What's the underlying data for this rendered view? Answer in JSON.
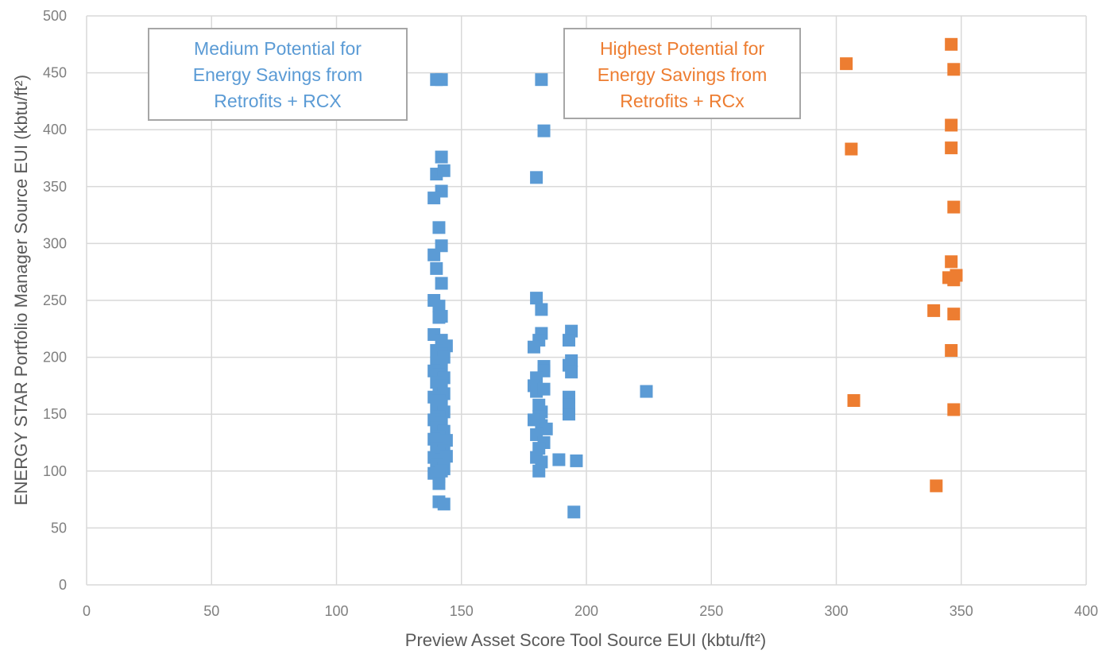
{
  "chart_data": {
    "type": "scatter",
    "xlabel": "Preview Asset Score Tool Source EUI (kbtu/ft²)",
    "ylabel": "ENERGY STAR Portfolio Manager Source EUI (kbtu/ft²)",
    "xlim": [
      0,
      400
    ],
    "ylim": [
      0,
      500
    ],
    "x_ticks": [
      "0",
      "50",
      "100",
      "150",
      "200",
      "250",
      "300",
      "350",
      "400"
    ],
    "y_ticks": [
      "0",
      "50",
      "100",
      "150",
      "200",
      "250",
      "300",
      "350",
      "400",
      "450",
      "500"
    ],
    "grid": true,
    "legend": "none",
    "annotations": [
      {
        "lines": [
          "Medium Potential for",
          "Energy Savings from",
          "Retrofits + RCX"
        ],
        "color": "#5b9bd5"
      },
      {
        "lines": [
          "Highest Potential for",
          "Energy Savings from",
          "Retrofits + RCx"
        ],
        "color": "#ed7d31"
      }
    ],
    "series": [
      {
        "color": "#5b9bd5",
        "marker": "square",
        "points": [
          [
            140,
            444
          ],
          [
            142,
            444
          ],
          [
            142,
            376
          ],
          [
            140,
            361
          ],
          [
            143,
            364
          ],
          [
            142,
            346
          ],
          [
            139,
            340
          ],
          [
            141,
            314
          ],
          [
            142,
            298
          ],
          [
            139,
            290
          ],
          [
            140,
            278
          ],
          [
            142,
            265
          ],
          [
            139,
            250
          ],
          [
            141,
            245
          ],
          [
            141,
            235
          ],
          [
            142,
            236
          ],
          [
            139,
            220
          ],
          [
            142,
            215
          ],
          [
            144,
            210
          ],
          [
            140,
            206
          ],
          [
            142,
            203
          ],
          [
            143,
            200
          ],
          [
            140,
            195
          ],
          [
            142,
            190
          ],
          [
            139,
            188
          ],
          [
            141,
            185
          ],
          [
            143,
            182
          ],
          [
            140,
            178
          ],
          [
            142,
            175
          ],
          [
            141,
            170
          ],
          [
            143,
            168
          ],
          [
            139,
            165
          ],
          [
            141,
            162
          ],
          [
            142,
            160
          ],
          [
            140,
            155
          ],
          [
            143,
            152
          ],
          [
            141,
            148
          ],
          [
            139,
            145
          ],
          [
            142,
            142
          ],
          [
            140,
            138
          ],
          [
            143,
            135
          ],
          [
            141,
            130
          ],
          [
            139,
            128
          ],
          [
            142,
            125
          ],
          [
            144,
            127
          ],
          [
            140,
            120
          ],
          [
            143,
            118
          ],
          [
            141,
            115
          ],
          [
            139,
            112
          ],
          [
            142,
            110
          ],
          [
            144,
            113
          ],
          [
            140,
            105
          ],
          [
            143,
            102
          ],
          [
            139,
            98
          ],
          [
            142,
            100
          ],
          [
            141,
            95
          ],
          [
            141,
            89
          ],
          [
            141,
            73
          ],
          [
            143,
            71
          ],
          [
            182,
            444
          ],
          [
            183,
            399
          ],
          [
            180,
            358
          ],
          [
            180,
            252
          ],
          [
            182,
            242
          ],
          [
            182,
            221
          ],
          [
            181,
            215
          ],
          [
            179,
            209
          ],
          [
            183,
            192
          ],
          [
            183,
            188
          ],
          [
            180,
            182
          ],
          [
            179,
            175
          ],
          [
            180,
            170
          ],
          [
            183,
            172
          ],
          [
            181,
            158
          ],
          [
            182,
            152
          ],
          [
            181,
            148
          ],
          [
            179,
            145
          ],
          [
            182,
            140
          ],
          [
            184,
            137
          ],
          [
            180,
            132
          ],
          [
            183,
            125
          ],
          [
            181,
            120
          ],
          [
            180,
            112
          ],
          [
            182,
            108
          ],
          [
            181,
            100
          ],
          [
            194,
            223
          ],
          [
            193,
            215
          ],
          [
            194,
            197
          ],
          [
            193,
            193
          ],
          [
            194,
            187
          ],
          [
            193,
            165
          ],
          [
            193,
            158
          ],
          [
            193,
            150
          ],
          [
            189,
            110
          ],
          [
            196,
            109
          ],
          [
            195,
            64
          ],
          [
            224,
            170
          ]
        ]
      },
      {
        "color": "#ed7d31",
        "marker": "square",
        "points": [
          [
            346,
            475
          ],
          [
            304,
            458
          ],
          [
            347,
            453
          ],
          [
            346,
            404
          ],
          [
            346,
            384
          ],
          [
            306,
            383
          ],
          [
            347,
            332
          ],
          [
            346,
            284
          ],
          [
            345,
            270
          ],
          [
            348,
            272
          ],
          [
            347,
            268
          ],
          [
            339,
            241
          ],
          [
            347,
            238
          ],
          [
            346,
            206
          ],
          [
            307,
            162
          ],
          [
            347,
            154
          ],
          [
            340,
            87
          ]
        ]
      }
    ]
  }
}
